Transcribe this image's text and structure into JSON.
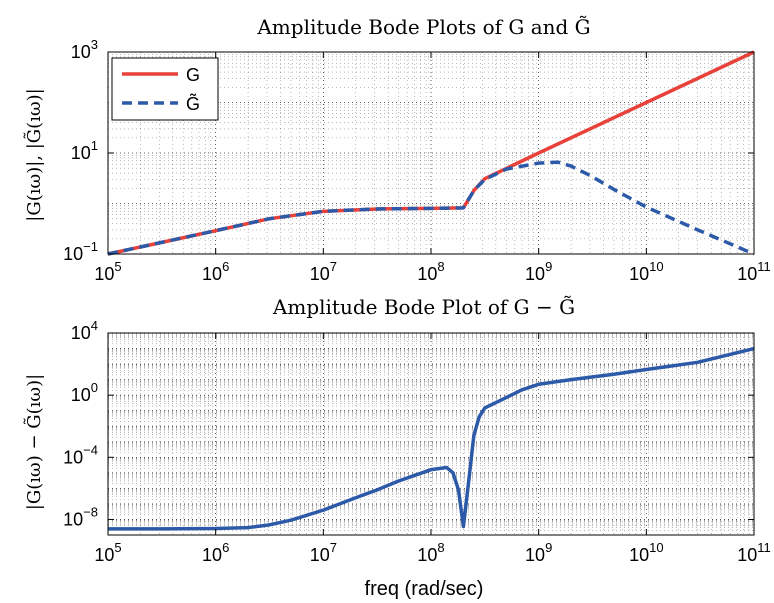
{
  "chart_data": [
    {
      "type": "line",
      "title": "Amplitude Bode Plots of G and G̃",
      "xlabel": "",
      "ylabel": "|G(ıω)|, |G̃(ıω)|",
      "xscale": "log",
      "yscale": "log",
      "xlim": [
        100000,
        100000000000
      ],
      "ylim": [
        0.1,
        1000
      ],
      "xticks": [
        {
          "value": 100000,
          "base": "10",
          "exp": "5"
        },
        {
          "value": 1000000,
          "base": "10",
          "exp": "6"
        },
        {
          "value": 10000000,
          "base": "10",
          "exp": "7"
        },
        {
          "value": 100000000,
          "base": "10",
          "exp": "8"
        },
        {
          "value": 1000000000,
          "base": "10",
          "exp": "9"
        },
        {
          "value": 10000000000,
          "base": "10",
          "exp": "10"
        },
        {
          "value": 100000000000,
          "base": "10",
          "exp": "11"
        }
      ],
      "yticks": [
        {
          "value": 0.1,
          "base": "10",
          "exp": "−1"
        },
        {
          "value": 10,
          "base": "10",
          "exp": "1"
        },
        {
          "value": 1000,
          "base": "10",
          "exp": "3"
        }
      ],
      "grid": true,
      "legend": "top-left",
      "series": [
        {
          "name": "G",
          "color": "#e8413a",
          "style": "solid",
          "x": [
            100000,
            316000,
            1000000,
            3160000,
            10000000,
            31600000,
            100000000,
            200000000,
            250000000,
            316000000,
            1000000000,
            10000000000,
            100000000000
          ],
          "y": [
            0.1,
            0.17,
            0.29,
            0.5,
            0.7,
            0.78,
            0.8,
            0.82,
            1.8,
            3.1,
            10,
            100,
            1000
          ]
        },
        {
          "name": "G̃",
          "color": "#2d5aa8",
          "style": "dashed",
          "x": [
            100000,
            316000,
            1000000,
            3160000,
            10000000,
            31600000,
            100000000,
            200000000,
            250000000,
            316000000,
            500000000,
            1000000000,
            1500000000,
            2000000000,
            3000000000,
            5000000000,
            10000000000,
            30000000000,
            100000000000
          ],
          "y": [
            0.1,
            0.17,
            0.29,
            0.5,
            0.7,
            0.78,
            0.8,
            0.82,
            1.8,
            3.0,
            4.8,
            6.3,
            6.6,
            5.5,
            3.6,
            1.9,
            0.85,
            0.3,
            0.1
          ]
        }
      ]
    },
    {
      "type": "line",
      "title": "Amplitude Bode Plot of G − G̃",
      "xlabel": "freq (rad/sec)",
      "ylabel": "|G(ıω) − G̃(ıω)|",
      "xscale": "log",
      "yscale": "log",
      "xlim": [
        100000,
        100000000000
      ],
      "ylim": [
        1e-09,
        10000
      ],
      "xticks": [
        {
          "value": 100000,
          "base": "10",
          "exp": "5"
        },
        {
          "value": 1000000,
          "base": "10",
          "exp": "6"
        },
        {
          "value": 10000000,
          "base": "10",
          "exp": "7"
        },
        {
          "value": 100000000,
          "base": "10",
          "exp": "8"
        },
        {
          "value": 1000000000,
          "base": "10",
          "exp": "9"
        },
        {
          "value": 10000000000,
          "base": "10",
          "exp": "10"
        },
        {
          "value": 100000000000,
          "base": "10",
          "exp": "11"
        }
      ],
      "yticks": [
        {
          "value": 1e-08,
          "base": "10",
          "exp": "−8"
        },
        {
          "value": 0.0001,
          "base": "10",
          "exp": "−4"
        },
        {
          "value": 1,
          "base": "10",
          "exp": "0"
        },
        {
          "value": 10000,
          "base": "10",
          "exp": "4"
        }
      ],
      "grid": true,
      "series": [
        {
          "name": "",
          "color": "#2d5aa8",
          "style": "solid",
          "x": [
            100000,
            316000,
            1000000,
            2000000,
            3160000,
            5000000,
            10000000,
            20000000,
            31600000,
            50000000,
            100000000,
            140000000,
            160000000,
            180000000,
            200000000,
            220000000,
            250000000,
            280000000,
            316000000,
            500000000,
            700000000,
            1000000000,
            2000000000,
            5000000000,
            10000000000,
            30000000000,
            100000000000
          ],
          "y": [
            2.5e-09,
            2.5e-09,
            2.6e-09,
            3e-09,
            4.5e-09,
            9e-09,
            4e-08,
            2.5e-07,
            8e-07,
            3e-06,
            1.6e-05,
            2.2e-05,
            1e-05,
            8e-07,
            3.5e-09,
            1e-06,
            0.0025,
            0.04,
            0.15,
            0.7,
            2.2,
            5,
            10,
            22,
            45,
            130,
            1000
          ]
        }
      ]
    }
  ]
}
